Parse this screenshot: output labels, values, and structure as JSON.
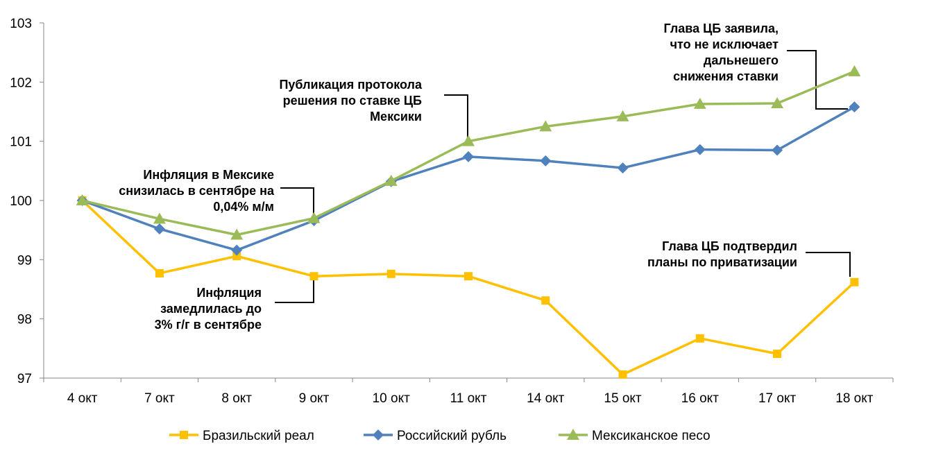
{
  "chart_data": {
    "type": "line",
    "title": "",
    "xlabel": "",
    "ylabel": "",
    "categories": [
      "4 окт",
      "7 окт",
      "8 окт",
      "9 окт",
      "10 окт",
      "11 окт",
      "14 окт",
      "15 окт",
      "16 окт",
      "17 окт",
      "18 окт"
    ],
    "ylim": [
      97,
      103
    ],
    "yticks": [
      "97",
      "98",
      "99",
      "100",
      "101",
      "102",
      "103"
    ],
    "grid": false,
    "legend_position": "bottom",
    "series": [
      {
        "name": "Бразильский реал",
        "color": "#FFC000",
        "marker": "square",
        "values": [
          100.0,
          98.77,
          99.06,
          98.72,
          98.76,
          98.72,
          98.31,
          97.06,
          97.67,
          97.41,
          98.62
        ]
      },
      {
        "name": "Российский рубль",
        "color": "#4F81BD",
        "marker": "diamond",
        "values": [
          100.0,
          99.52,
          99.16,
          99.66,
          100.32,
          100.74,
          100.67,
          100.55,
          100.86,
          100.85,
          101.58
        ]
      },
      {
        "name": "Мексиканское песо",
        "color": "#9BBB59",
        "marker": "triangle",
        "values": [
          100.0,
          99.69,
          99.42,
          99.7,
          100.33,
          101.0,
          101.25,
          101.42,
          101.63,
          101.64,
          102.18
        ]
      }
    ],
    "annotations": [
      {
        "lines": [
          "Инфляция в Мексике",
          "снизилась в сентябре на",
          "0,04% м/м"
        ],
        "category_index": 3,
        "value": 99.7,
        "series": "Мексиканское песо"
      },
      {
        "lines": [
          "Инфляция",
          "замедлилась до",
          "3% г/г в сентябре"
        ],
        "category_index": 3,
        "value": 98.72,
        "series": "Бразильский реал"
      },
      {
        "lines": [
          "Публикация протокола",
          "решения по ставке ЦБ",
          "Мексики"
        ],
        "category_index": 5,
        "value": 101.0,
        "series": "Мексиканское песо"
      },
      {
        "lines": [
          "Глава ЦБ заявила,",
          "что не исключает",
          "дальнешего",
          "снижения ставки"
        ],
        "category_index": 10,
        "value": 101.58,
        "series": "Российский рубль"
      },
      {
        "lines": [
          "Глава ЦБ подтвердил",
          "планы по приватизации"
        ],
        "category_index": 10,
        "value": 98.62,
        "series": "Бразильский реал"
      }
    ]
  }
}
